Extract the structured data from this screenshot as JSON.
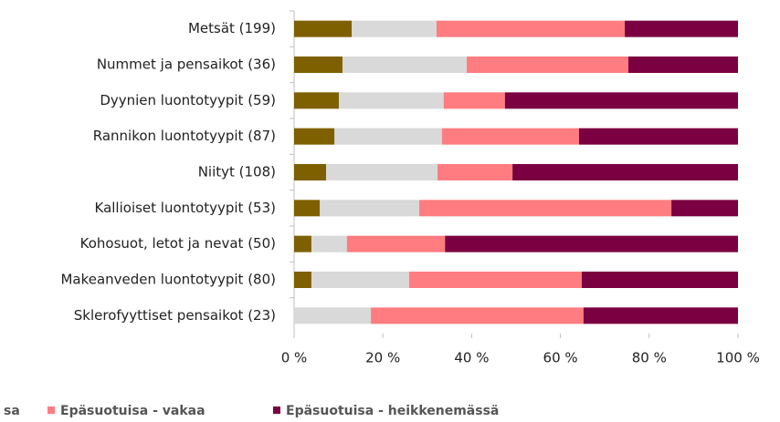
{
  "chart_data": {
    "type": "stacked-barh",
    "categories": [
      "Metsät (199)",
      "Nummet ja pensaikot (36)",
      "Dyynien luontotyypit (59)",
      "Rannikon luontotyypit (87)",
      "Niityt (108)",
      "Kallioiset luontotyypit (53)",
      "Kohosuot, letot ja nevat (50)",
      "Makeanveden luontotyypit (80)",
      "Sklerofyyttiset pensaikot (23)"
    ],
    "series": [
      {
        "color": "#7f6000",
        "values": [
          13.0,
          10.9,
          10.1,
          9.1,
          7.2,
          5.8,
          3.9,
          3.9,
          0
        ]
      },
      {
        "name": "sa",
        "color": "#d9d9d9",
        "values": [
          19.1,
          28.0,
          23.6,
          24.2,
          25.1,
          22.4,
          8.0,
          22.0,
          17.3
        ]
      },
      {
        "name": "Epäsuotuisa - vakaa",
        "color": "#ff7c80",
        "values": [
          42.4,
          36.4,
          13.8,
          30.9,
          16.9,
          56.8,
          22.1,
          38.9,
          47.9
        ]
      },
      {
        "name": "Epäsuotuisa - heikkenemässä",
        "color": "#7b0041",
        "values": [
          25.5,
          24.7,
          52.5,
          35.8,
          50.8,
          15.0,
          66.0,
          35.2,
          34.8
        ]
      }
    ],
    "xlim": [
      0,
      100
    ],
    "xticks": [
      {
        "value": 0,
        "label": "0 %"
      },
      {
        "value": 20,
        "label": "20 %"
      },
      {
        "value": 40,
        "label": "40 %"
      },
      {
        "value": 60,
        "label": "60 %"
      },
      {
        "value": 80,
        "label": "80 %"
      },
      {
        "value": 100,
        "label": "100 %"
      }
    ],
    "grid": false
  }
}
